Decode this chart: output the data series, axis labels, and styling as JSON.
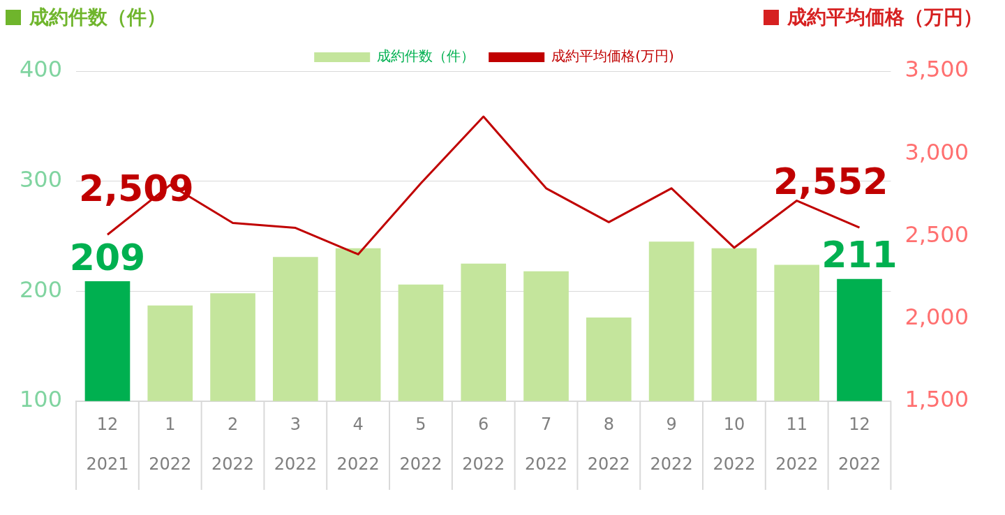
{
  "chart_data": {
    "type": "bar",
    "ylabel": "成約件数（件）",
    "y2label": "成約平均価格（万円）",
    "categories": [
      "12\n2021",
      "1\n2022",
      "2\n2022",
      "3\n2022",
      "4\n2022",
      "5\n2022",
      "6\n2022",
      "7\n2022",
      "8\n2022",
      "9\n2022",
      "10\n2022",
      "11\n2022",
      "12\n2022"
    ],
    "series": [
      {
        "name": "成約件数（件）",
        "color": "#c4e59c",
        "colors": [
          "#00b050",
          "#c4e59c",
          "#c4e59c",
          "#c4e59c",
          "#c4e59c",
          "#c4e59c",
          "#c4e59c",
          "#c4e59c",
          "#c4e59c",
          "#c4e59c",
          "#c4e59c",
          "#c4e59c",
          "#00b050"
        ],
        "values": [
          209,
          187,
          198,
          231,
          239,
          206,
          225,
          218,
          176,
          245,
          239,
          224,
          211
        ],
        "value_labels": [
          "209",
          null,
          null,
          null,
          null,
          null,
          null,
          null,
          null,
          null,
          null,
          null,
          "211"
        ]
      },
      {
        "name": "成約平均価格(万円)",
        "type": "line",
        "axis": "y2",
        "color": "#c00000",
        "values": [
          2509,
          2810,
          2580,
          2550,
          2390,
          2820,
          3225,
          2790,
          2585,
          2790,
          2430,
          2715,
          2552
        ],
        "value_labels": [
          "2,509",
          null,
          null,
          null,
          null,
          null,
          null,
          null,
          null,
          null,
          null,
          null,
          "2,552"
        ]
      }
    ],
    "ylim": [
      100,
      400
    ],
    "yticks": [
      100,
      200,
      300,
      400
    ],
    "y2lim": [
      1500,
      3500
    ],
    "y2ticks": [
      {
        "value": 1500,
        "label": "1,500"
      },
      {
        "value": 2000,
        "label": "2,000"
      },
      {
        "value": 2500,
        "label": "2,500"
      },
      {
        "value": 3000,
        "label": "3,000"
      },
      {
        "value": 3500,
        "label": "3,500"
      }
    ],
    "grid": "y",
    "legend": "top",
    "marker": "none"
  }
}
